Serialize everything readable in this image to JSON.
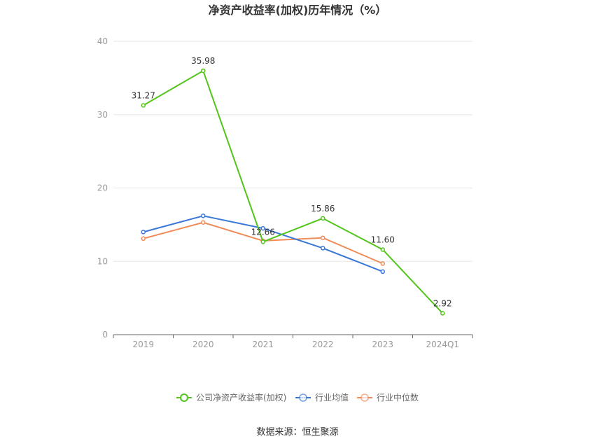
{
  "chart_data": {
    "type": "line",
    "title": "净资产收益率(加权)历年情况（%）",
    "categories": [
      "2019",
      "2020",
      "2021",
      "2022",
      "2023",
      "2024Q1"
    ],
    "ylim": [
      0,
      40
    ],
    "yticks": [
      0,
      10,
      20,
      30,
      40
    ],
    "grid": true,
    "legend_position": "bottom",
    "series": [
      {
        "name": "公司净资产收益率(加权)",
        "color": "#52c41a",
        "values": [
          31.27,
          35.98,
          12.66,
          15.86,
          11.6,
          2.92
        ],
        "labels": [
          "31.27",
          "35.98",
          "12.66",
          "15.86",
          "11.60",
          "2.92"
        ]
      },
      {
        "name": "行业均值",
        "color": "#3a78d8",
        "values": [
          14.0,
          16.2,
          14.5,
          11.8,
          8.6,
          null
        ]
      },
      {
        "name": "行业中位数",
        "color": "#f08c5a",
        "values": [
          13.1,
          15.3,
          12.8,
          13.2,
          9.7,
          null
        ]
      }
    ]
  },
  "source_text": "数据来源：恒生聚源"
}
